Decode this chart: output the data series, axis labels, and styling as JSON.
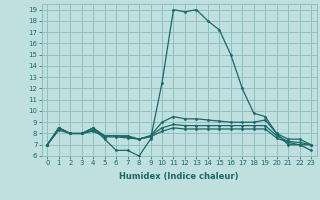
{
  "xlabel": "Humidex (Indice chaleur)",
  "background_color": "#c0e0e0",
  "grid_color": "#90c0c0",
  "line_color": "#1a6868",
  "x": [
    0,
    1,
    2,
    3,
    4,
    5,
    6,
    7,
    8,
    9,
    10,
    11,
    12,
    13,
    14,
    15,
    16,
    17,
    18,
    19,
    20,
    21,
    22,
    23
  ],
  "line_max": [
    7.0,
    8.5,
    8.0,
    8.0,
    8.5,
    7.5,
    6.5,
    6.5,
    6.0,
    7.5,
    12.5,
    19.0,
    18.8,
    19.0,
    18.0,
    17.2,
    15.0,
    12.0,
    9.8,
    9.5,
    8.0,
    7.0,
    7.0,
    7.0
  ],
  "line_upper": [
    7.0,
    8.5,
    8.0,
    8.0,
    8.5,
    7.8,
    7.8,
    7.8,
    7.5,
    7.8,
    9.0,
    9.5,
    9.3,
    9.3,
    9.2,
    9.1,
    9.0,
    9.0,
    9.0,
    9.2,
    8.0,
    7.5,
    7.5,
    7.0
  ],
  "line_mean": [
    7.0,
    8.5,
    8.0,
    8.0,
    8.3,
    7.8,
    7.8,
    7.7,
    7.5,
    7.8,
    8.5,
    8.8,
    8.7,
    8.7,
    8.7,
    8.7,
    8.7,
    8.7,
    8.7,
    8.7,
    7.8,
    7.3,
    7.2,
    7.0
  ],
  "line_lower": [
    7.0,
    8.3,
    8.0,
    8.0,
    8.2,
    7.7,
    7.7,
    7.6,
    7.5,
    7.7,
    8.2,
    8.5,
    8.4,
    8.4,
    8.4,
    8.4,
    8.4,
    8.4,
    8.4,
    8.4,
    7.6,
    7.2,
    7.0,
    6.5
  ],
  "xlim": [
    -0.5,
    23.5
  ],
  "ylim": [
    6,
    19.5
  ],
  "yticks": [
    6,
    7,
    8,
    9,
    10,
    11,
    12,
    13,
    14,
    15,
    16,
    17,
    18,
    19
  ],
  "xticks": [
    0,
    1,
    2,
    3,
    4,
    5,
    6,
    7,
    8,
    9,
    10,
    11,
    12,
    13,
    14,
    15,
    16,
    17,
    18,
    19,
    20,
    21,
    22,
    23
  ],
  "xlabel_fontsize": 6.0,
  "tick_fontsize": 5.0
}
